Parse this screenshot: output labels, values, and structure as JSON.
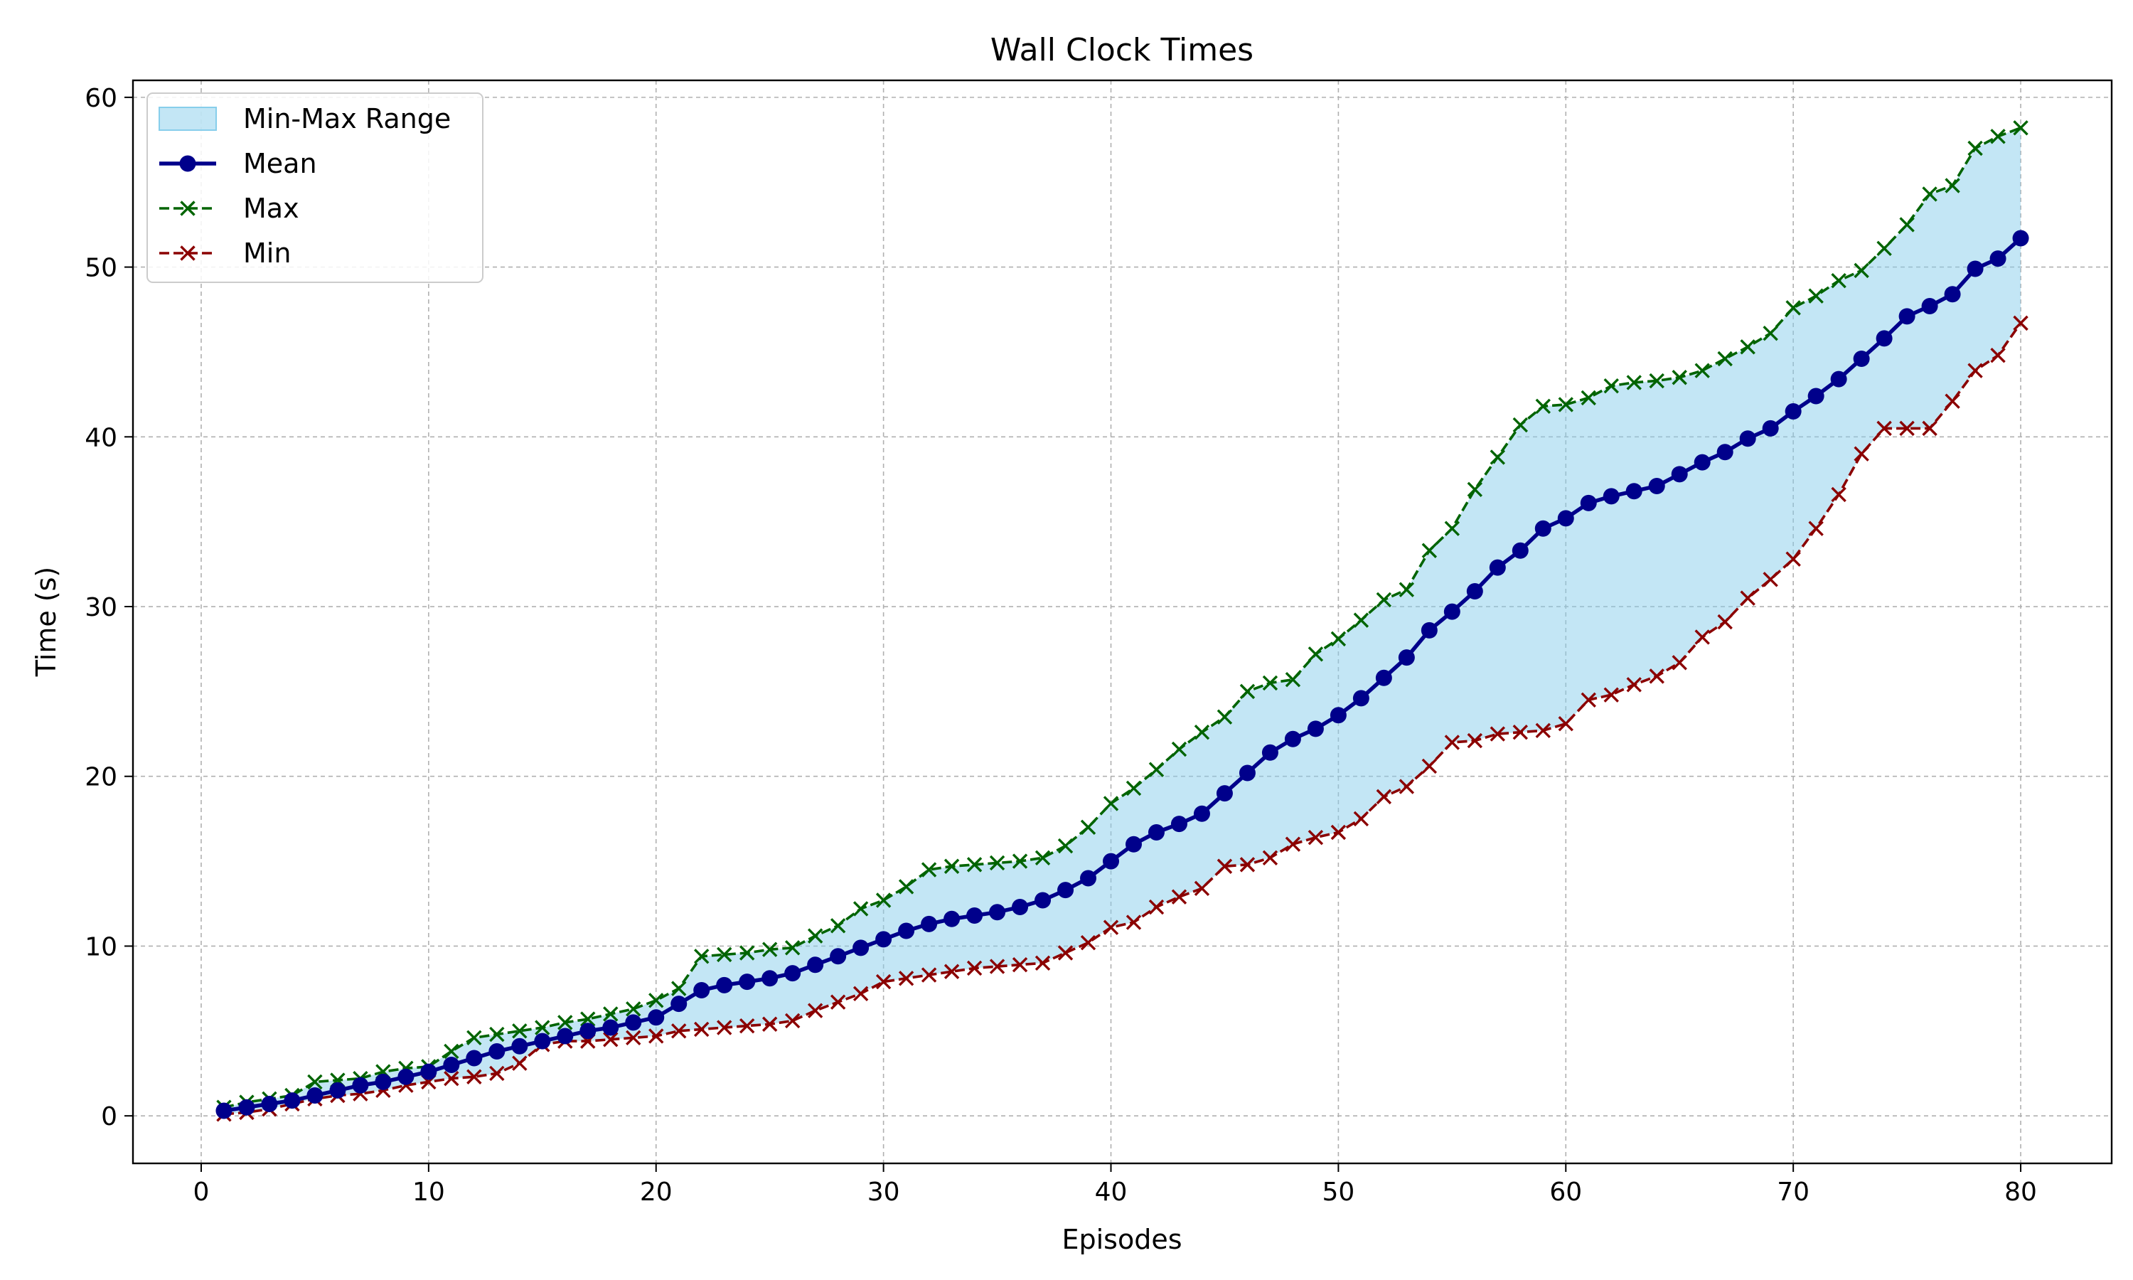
{
  "chart_data": {
    "type": "line",
    "title": "Wall Clock Times",
    "xlabel": "Episodes",
    "ylabel": "Time (s)",
    "xlim": [
      -3,
      84
    ],
    "ylim": [
      -2.8,
      61
    ],
    "xticks": [
      0,
      10,
      20,
      30,
      40,
      50,
      60,
      70,
      80
    ],
    "yticks": [
      0,
      10,
      20,
      30,
      40,
      50,
      60
    ],
    "grid": true,
    "legend_position": "top-left",
    "x": [
      1,
      2,
      3,
      4,
      5,
      6,
      7,
      8,
      9,
      10,
      11,
      12,
      13,
      14,
      15,
      16,
      17,
      18,
      19,
      20,
      21,
      22,
      23,
      24,
      25,
      26,
      27,
      28,
      29,
      30,
      31,
      32,
      33,
      34,
      35,
      36,
      37,
      38,
      39,
      40,
      41,
      42,
      43,
      44,
      45,
      46,
      47,
      48,
      49,
      50,
      51,
      52,
      53,
      54,
      55,
      56,
      57,
      58,
      59,
      60,
      61,
      62,
      63,
      64,
      65,
      66,
      67,
      68,
      69,
      70,
      71,
      72,
      73,
      74,
      75,
      76,
      77,
      78,
      79,
      80
    ],
    "series": [
      {
        "name": "Mean",
        "color": "#00008b",
        "style": "solid",
        "marker": "circle",
        "values": [
          0.3,
          0.5,
          0.7,
          0.9,
          1.2,
          1.5,
          1.8,
          2.0,
          2.3,
          2.6,
          3.0,
          3.4,
          3.8,
          4.1,
          4.4,
          4.7,
          5.0,
          5.2,
          5.5,
          5.8,
          6.6,
          7.4,
          7.7,
          7.9,
          8.1,
          8.4,
          8.9,
          9.4,
          9.9,
          10.4,
          10.9,
          11.3,
          11.6,
          11.8,
          12.0,
          12.3,
          12.7,
          13.3,
          14.0,
          15.0,
          16.0,
          16.7,
          17.2,
          17.8,
          19.0,
          20.2,
          21.4,
          22.2,
          22.8,
          23.6,
          24.6,
          25.8,
          27.0,
          28.6,
          29.7,
          30.9,
          32.3,
          33.3,
          34.6,
          35.2,
          36.1,
          36.5,
          36.8,
          37.1,
          37.8,
          38.5,
          39.1,
          39.9,
          40.5,
          41.5,
          42.4,
          43.4,
          44.6,
          45.8,
          47.1,
          47.7,
          48.4,
          49.9,
          50.5,
          51.7
        ]
      },
      {
        "name": "Max",
        "color": "#006400",
        "style": "dashed",
        "marker": "x",
        "values": [
          0.5,
          0.8,
          1.0,
          1.2,
          2.0,
          2.1,
          2.2,
          2.6,
          2.8,
          2.9,
          3.8,
          4.6,
          4.8,
          5.0,
          5.2,
          5.5,
          5.7,
          6.0,
          6.3,
          6.8,
          7.5,
          9.4,
          9.5,
          9.6,
          9.8,
          9.9,
          10.6,
          11.2,
          12.2,
          12.7,
          13.5,
          14.5,
          14.7,
          14.8,
          14.9,
          15.0,
          15.2,
          15.9,
          17.0,
          18.4,
          19.3,
          20.4,
          21.6,
          22.6,
          23.5,
          25.0,
          25.5,
          25.7,
          27.2,
          28.1,
          29.2,
          30.4,
          31.0,
          33.3,
          34.6,
          36.9,
          38.8,
          40.7,
          41.8,
          41.9,
          42.3,
          43.0,
          43.2,
          43.3,
          43.5,
          43.9,
          44.6,
          45.3,
          46.1,
          47.6,
          48.3,
          49.2,
          49.8,
          51.1,
          52.5,
          54.3,
          54.8,
          57.0,
          57.7,
          58.2
        ]
      },
      {
        "name": "Min",
        "color": "#8b0000",
        "style": "dashed",
        "marker": "x",
        "values": [
          0.1,
          0.2,
          0.4,
          0.7,
          1.0,
          1.2,
          1.3,
          1.5,
          1.8,
          2.0,
          2.2,
          2.3,
          2.5,
          3.1,
          4.2,
          4.4,
          4.4,
          4.5,
          4.6,
          4.7,
          5.0,
          5.1,
          5.2,
          5.3,
          5.4,
          5.6,
          6.2,
          6.7,
          7.2,
          7.9,
          8.1,
          8.3,
          8.5,
          8.7,
          8.8,
          8.9,
          9.0,
          9.6,
          10.2,
          11.1,
          11.4,
          12.3,
          12.9,
          13.4,
          14.7,
          14.8,
          15.2,
          16.0,
          16.4,
          16.7,
          17.5,
          18.8,
          19.4,
          20.6,
          22.0,
          22.1,
          22.5,
          22.6,
          22.7,
          23.1,
          24.5,
          24.8,
          25.4,
          25.9,
          26.7,
          28.2,
          29.1,
          30.5,
          31.6,
          32.8,
          34.6,
          36.6,
          39.0,
          40.5,
          40.5,
          40.5,
          42.1,
          43.9,
          44.8,
          46.7
        ]
      }
    ],
    "range_fill": {
      "name": "Min-Max Range",
      "color": "#87ceeb",
      "opacity": 0.5
    }
  }
}
